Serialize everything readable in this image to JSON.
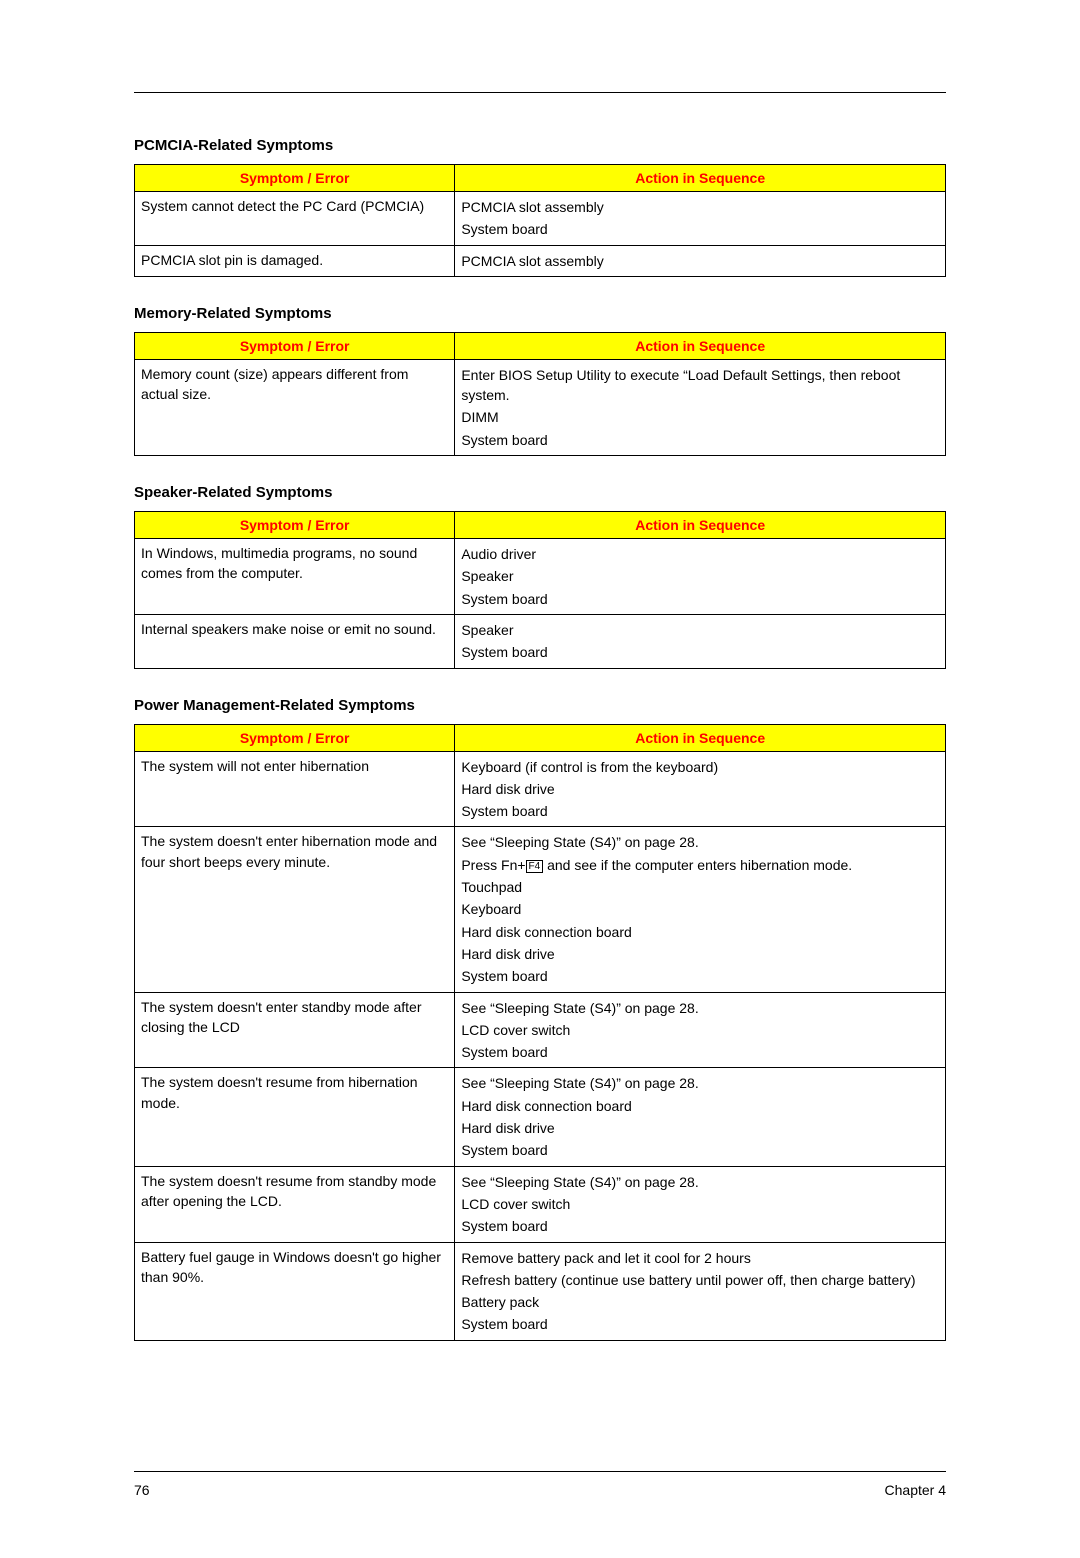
{
  "colors": {
    "header_bg": "#ffff00",
    "header_fg": "#ff0000",
    "border": "#000000",
    "text": "#000000",
    "page_bg": "#ffffff"
  },
  "table_header": {
    "symptom": "Symptom / Error",
    "action": "Action in Sequence"
  },
  "sections": {
    "pcmcia": {
      "title": "PCMCIA-Related Symptoms",
      "rows": [
        {
          "symptom": "System cannot detect the PC Card (PCMCIA)",
          "actions": [
            "PCMCIA slot assembly",
            "System board"
          ]
        },
        {
          "symptom": "PCMCIA slot pin is damaged.",
          "actions": [
            "PCMCIA slot assembly"
          ]
        }
      ]
    },
    "memory": {
      "title": "Memory-Related Symptoms",
      "rows": [
        {
          "symptom": "Memory count (size) appears different from actual size.",
          "actions": [
            "Enter BIOS Setup Utility to execute “Load Default Settings, then reboot system.",
            "DIMM",
            "System board"
          ]
        }
      ]
    },
    "speaker": {
      "title": "Speaker-Related Symptoms",
      "rows": [
        {
          "symptom": "In Windows, multimedia programs, no sound comes from the computer.",
          "actions": [
            "Audio driver",
            "Speaker",
            "System board"
          ]
        },
        {
          "symptom": "Internal speakers make noise or emit no sound.",
          "actions": [
            "Speaker",
            "System board"
          ]
        }
      ]
    },
    "power": {
      "title": "Power Management-Related Symptoms",
      "rows": [
        {
          "symptom": "The system will not enter hibernation",
          "actions": [
            "Keyboard (if control is from the keyboard)",
            "Hard disk drive",
            "System board"
          ]
        },
        {
          "symptom": "The system doesn't enter hibernation mode and four short beeps every minute.",
          "actions": [
            "See “Sleeping State (S4)” on page 28.",
            {
              "prefix": "Press Fn+",
              "key": "F4",
              "suffix": " and see if the computer enters hibernation mode."
            },
            "Touchpad",
            "Keyboard",
            "Hard disk connection board",
            "Hard disk drive",
            "System board"
          ]
        },
        {
          "symptom": "The system doesn't enter standby mode after closing the LCD",
          "actions": [
            "See “Sleeping State (S4)” on page 28.",
            "LCD cover switch",
            "System board"
          ]
        },
        {
          "symptom": "The system doesn't resume from hibernation mode.",
          "actions": [
            "See “Sleeping State (S4)” on page 28.",
            "Hard disk connection board",
            "Hard disk drive",
            "System board"
          ]
        },
        {
          "symptom": "The system doesn't resume from standby mode after opening the LCD.",
          "actions": [
            "See “Sleeping State (S4)” on page 28.",
            "LCD cover switch",
            "System board"
          ]
        },
        {
          "symptom": "Battery fuel gauge in Windows doesn't go higher than 90%.",
          "actions": [
            "Remove battery pack and let it cool for 2 hours",
            "Refresh battery (continue use battery until power off, then charge battery)",
            "Battery pack",
            "System board"
          ]
        }
      ]
    }
  },
  "footer": {
    "page_number": "76",
    "chapter": "Chapter 4"
  }
}
